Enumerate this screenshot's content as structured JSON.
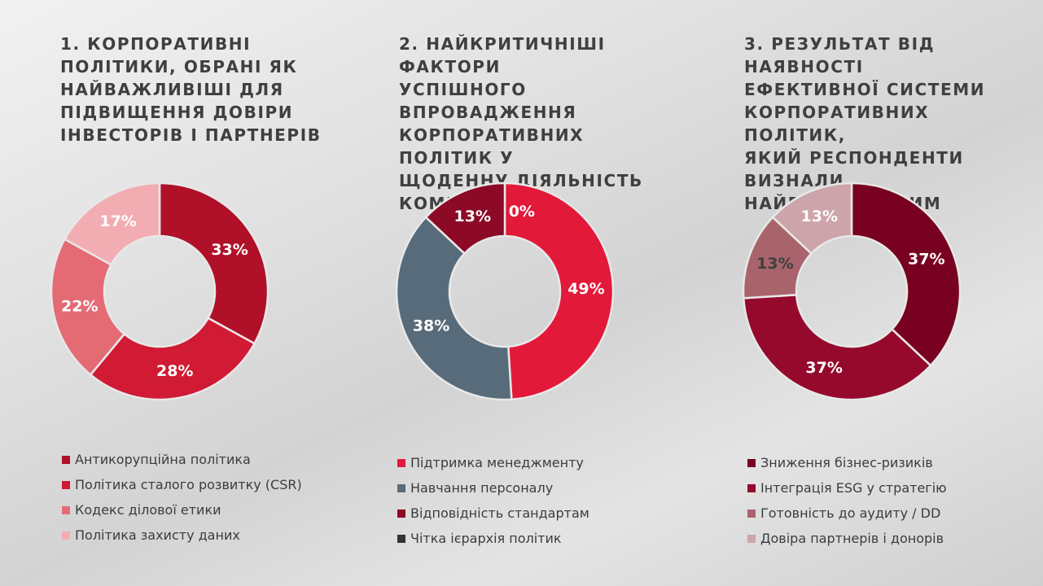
{
  "chart_data": [
    {
      "type": "pie",
      "title": "1. КОРПОРАТИВНІ\nПОЛІТИКИ, ОБРАНІ ЯК\nНАЙВАЖЛИВІШІ ДЛЯ\nПІДВИЩЕННЯ ДОВІРИ\nІНВЕСТОРІВ І ПАРТНЕРІВ",
      "categories": [
        "Антикорупційна політика",
        "Політика сталого розвитку (CSR)",
        "Кодекс ділової етики",
        "Політика захисту даних"
      ],
      "values": [
        33,
        28,
        22,
        17
      ],
      "labels": [
        "33%",
        "28%",
        "22%",
        "17%"
      ],
      "colors": [
        "#b01028",
        "#d11a34",
        "#e46b74",
        "#f2adb3"
      ],
      "label_colors": [
        "#ffffff",
        "#ffffff",
        "#ffffff",
        "#ffffff"
      ],
      "legend_position": "bottom"
    },
    {
      "type": "pie",
      "title": "2. НАЙКРИТИЧНІШІ ФАКТОРИ\nУСПІШНОГО ВПРОВАДЖЕННЯ\nКОРПОРАТИВНИХ ПОЛІТИК У\nЩОДЕННУ ДІЯЛЬНІСТЬ\nКОМПАНІЇ",
      "categories": [
        "Підтримка менеджменту",
        "Навчання персоналу",
        "Відповідність стандартам",
        "Чітка ієрархія політик"
      ],
      "values": [
        49,
        38,
        13,
        0
      ],
      "labels": [
        "49%",
        "38%",
        "13%",
        "0%"
      ],
      "colors": [
        "#e3193a",
        "#586b7a",
        "#8c0a26",
        "#333333"
      ],
      "label_colors": [
        "#ffffff",
        "#ffffff",
        "#ffffff",
        "#ffffff"
      ],
      "legend_position": "bottom"
    },
    {
      "type": "pie",
      "title": "3. РЕЗУЛЬТАТ ВІД НАЯВНОСТІ\nЕФЕКТИВНОЇ СИСТЕМИ\nКОРПОРАТИВНИХ ПОЛІТИК,\nЯКИЙ РЕСПОНДЕНТИ\nВИЗНАЛИ НАЙВАЖЛИВІШИМ",
      "categories": [
        "Зниження бізнес-ризиків",
        "Інтеграція ESG у стратегію",
        "Готовність до аудиту / DD",
        "Довіра партнерів і донорів"
      ],
      "values": [
        37,
        37,
        13,
        13
      ],
      "labels": [
        "37%",
        "37%",
        "13%",
        "13%"
      ],
      "colors": [
        "#780020",
        "#950a2c",
        "#a9646b",
        "#cca4aa"
      ],
      "label_colors": [
        "#ffffff",
        "#ffffff",
        "#3f3f3f",
        "#ffffff"
      ],
      "legend_position": "bottom"
    }
  ]
}
